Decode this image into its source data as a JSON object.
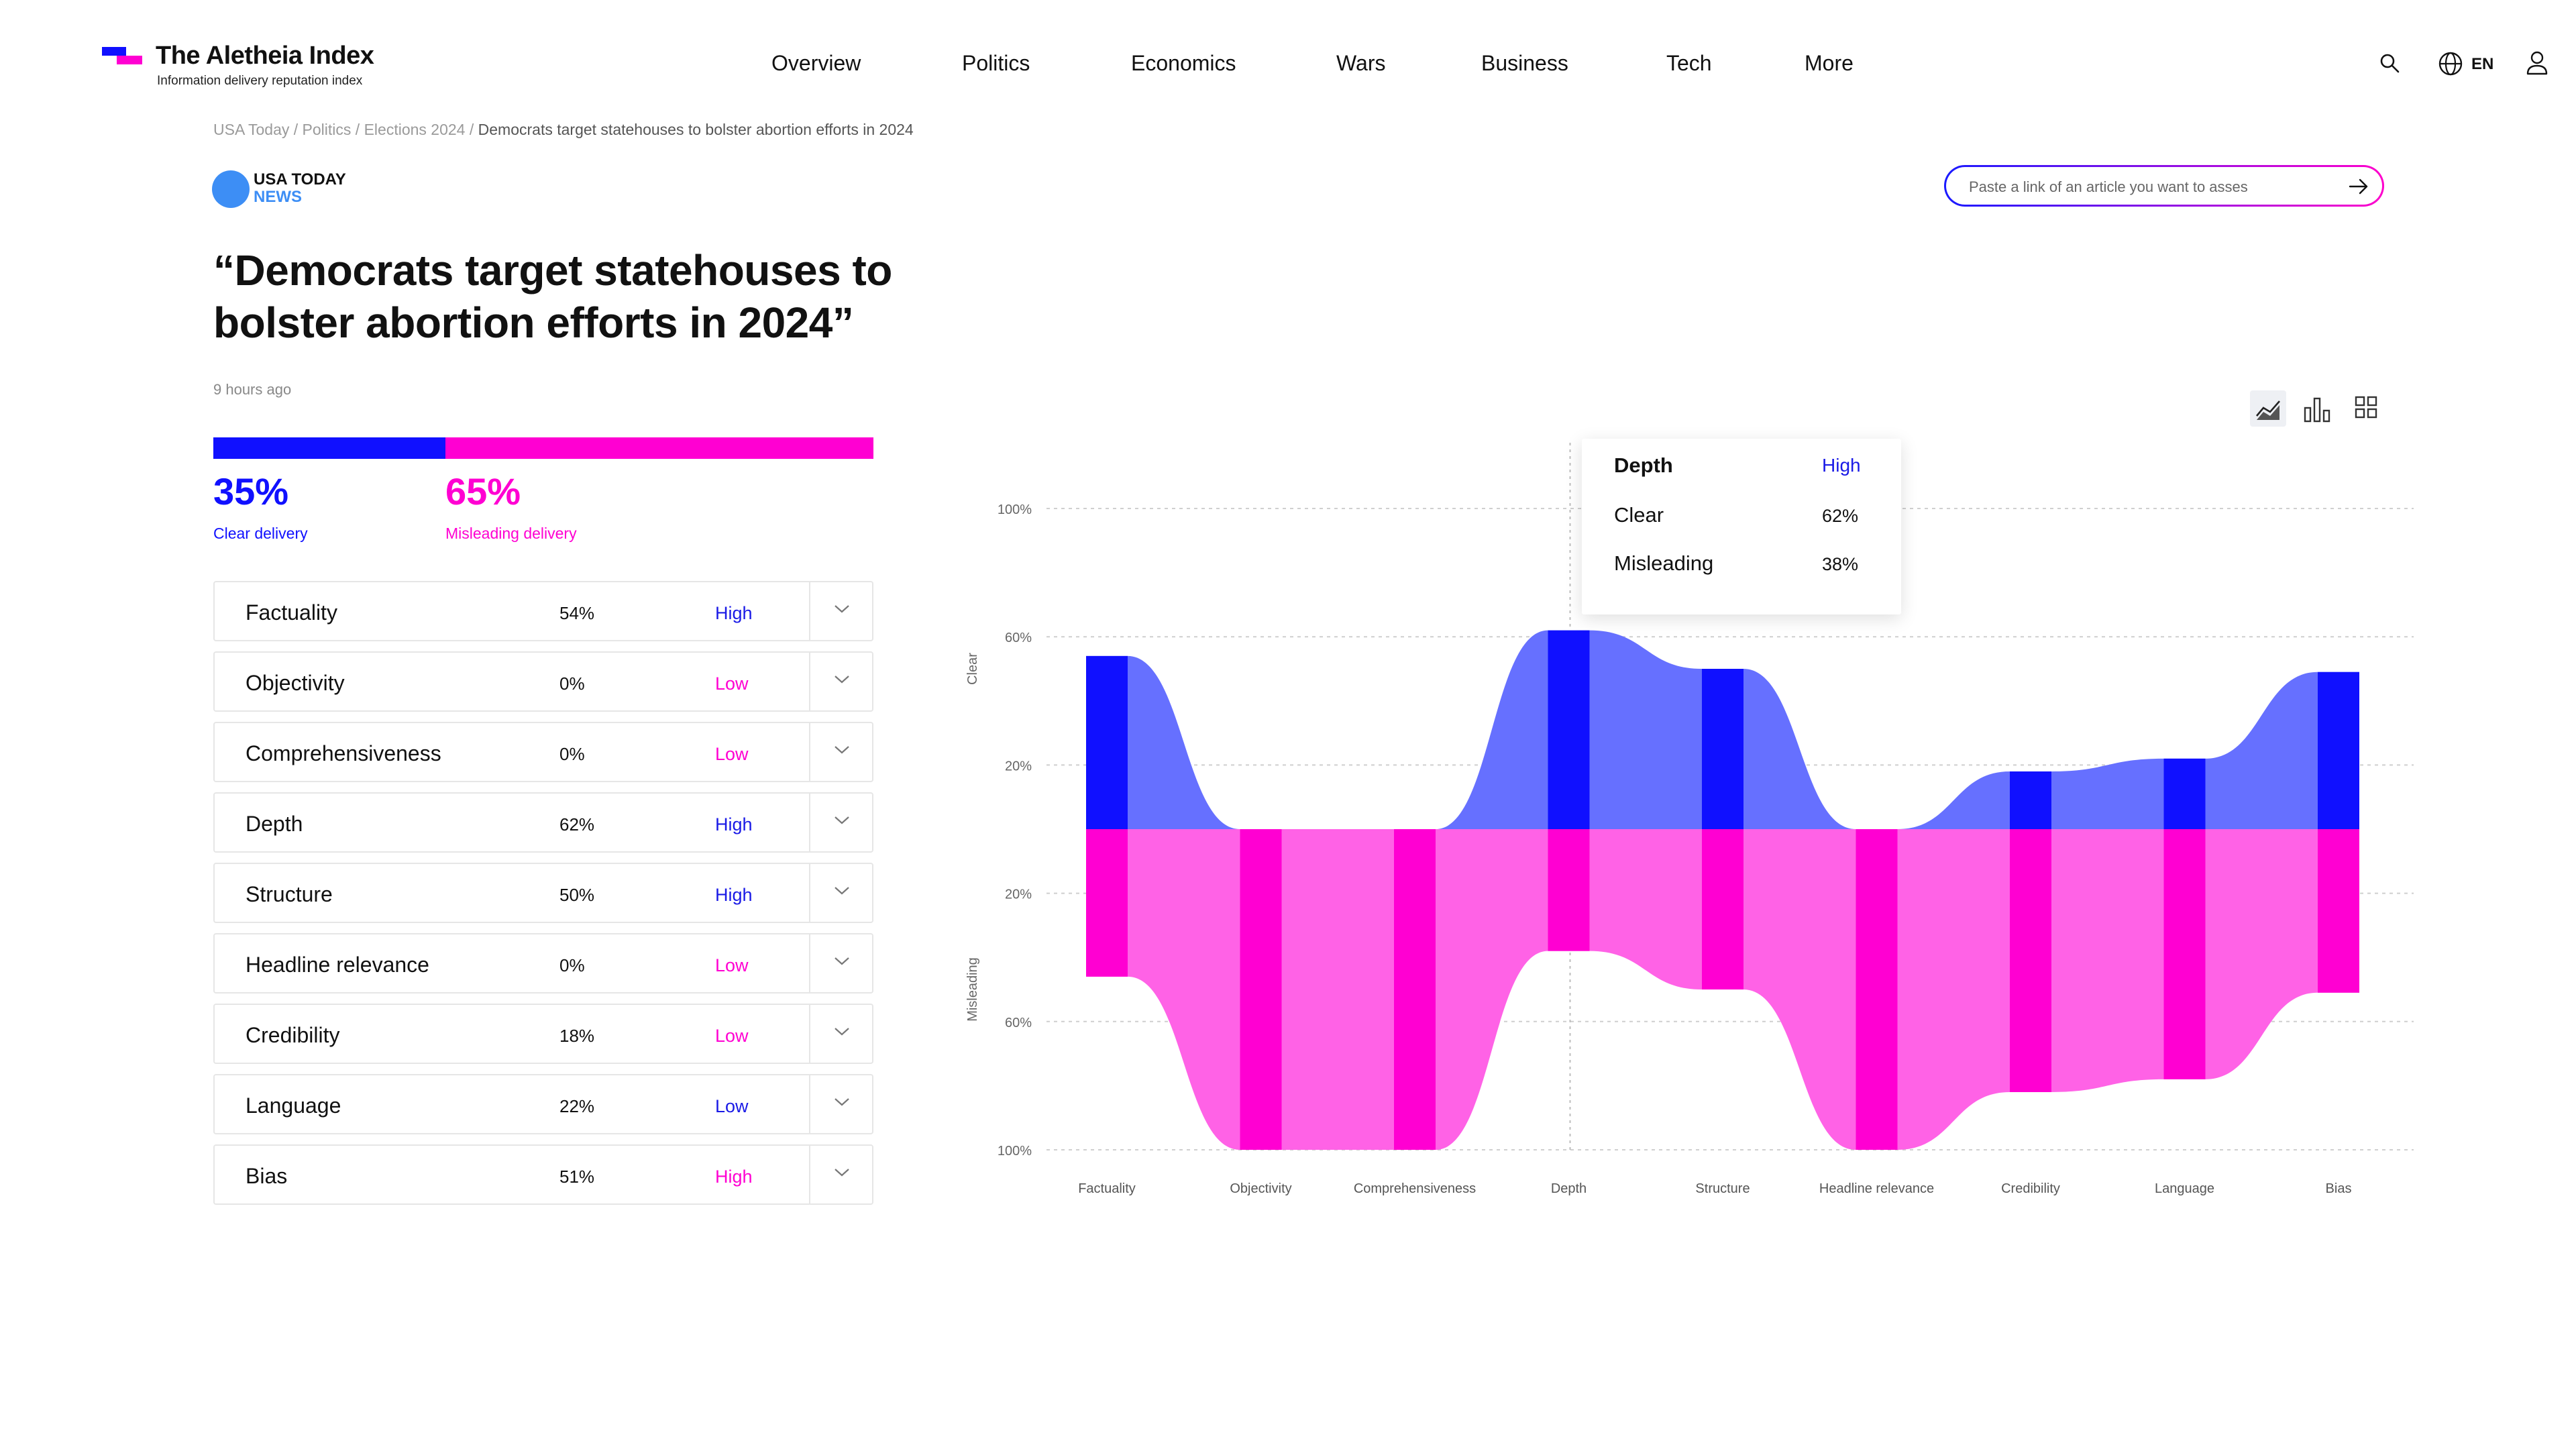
{
  "brand": {
    "title": "The Aletheia Index",
    "subtitle": "Information delivery reputation index"
  },
  "nav": [
    "Overview",
    "Politics",
    "Economics",
    "Wars",
    "Business",
    "Tech",
    "More"
  ],
  "header_tools": {
    "lang": "EN"
  },
  "breadcrumb": [
    "USA Today /",
    "Politics /",
    "Elections 2024 /",
    "Democrats target statehouses to bolster abortion efforts in 2024"
  ],
  "source": {
    "name": "USA TODAY",
    "sub": "NEWS",
    "color": "#3d8ef5"
  },
  "url_input": {
    "placeholder": "Paste a link of an article you want to asses"
  },
  "article": {
    "headline": "“Democrats target statehouses to bolster abortion efforts in 2024”",
    "time_ago": "9 hours ago"
  },
  "delivery": {
    "clear_pct": "35%",
    "clear_label": "Clear delivery",
    "misleading_pct": "65%",
    "misleading_label": "Misleading delivery"
  },
  "colors": {
    "clear": "#1010ff",
    "misleading": "#ff00d2",
    "clear_area": "#6670ff",
    "misleading_area": "#ff62e6"
  },
  "metrics": [
    {
      "name": "Factuality",
      "value": "54%",
      "rating": "High",
      "rating_color": "#1a1ae6"
    },
    {
      "name": "Objectivity",
      "value": "0%",
      "rating": "Low",
      "rating_color": "#ff00d2"
    },
    {
      "name": "Comprehensiveness",
      "value": "0%",
      "rating": "Low",
      "rating_color": "#ff00d2"
    },
    {
      "name": "Depth",
      "value": "62%",
      "rating": "High",
      "rating_color": "#1a1ae6"
    },
    {
      "name": "Structure",
      "value": "50%",
      "rating": "High",
      "rating_color": "#1a1ae6"
    },
    {
      "name": "Headline relevance",
      "value": "0%",
      "rating": "Low",
      "rating_color": "#ff00d2"
    },
    {
      "name": "Credibility",
      "value": "18%",
      "rating": "Low",
      "rating_color": "#ff00d2"
    },
    {
      "name": "Language",
      "value": "22%",
      "rating": "Low",
      "rating_color": "#1a1ae6"
    },
    {
      "name": "Bias",
      "value": "51%",
      "rating": "High",
      "rating_color": "#ff00d2"
    }
  ],
  "tooltip": {
    "metric": "Depth",
    "rating": "High",
    "clear_label": "Clear",
    "clear_value": "62%",
    "misleading_label": "Misleading",
    "misleading_value": "38%"
  },
  "chart_data": {
    "type": "area",
    "title": "",
    "categories": [
      "Factuality",
      "Objectivity",
      "Comprehensiveness",
      "Depth",
      "Structure",
      "Headline relevance",
      "Credibility",
      "Language",
      "Bias"
    ],
    "series": [
      {
        "name": "Clear",
        "values": [
          54,
          0,
          0,
          62,
          50,
          0,
          18,
          22,
          49
        ]
      },
      {
        "name": "Misleading",
        "values": [
          46,
          100,
          100,
          38,
          50,
          100,
          82,
          78,
          51
        ]
      }
    ],
    "y_tick_labels_top": [
      "100%",
      "60%",
      "20%"
    ],
    "y_tick_labels_bottom": [
      "20%",
      "60%",
      "100%"
    ],
    "ylabel_top": "Clear",
    "ylabel_bottom": "Misleading",
    "ylim": [
      0,
      100
    ],
    "grid": true,
    "highlighted_category": "Depth"
  }
}
